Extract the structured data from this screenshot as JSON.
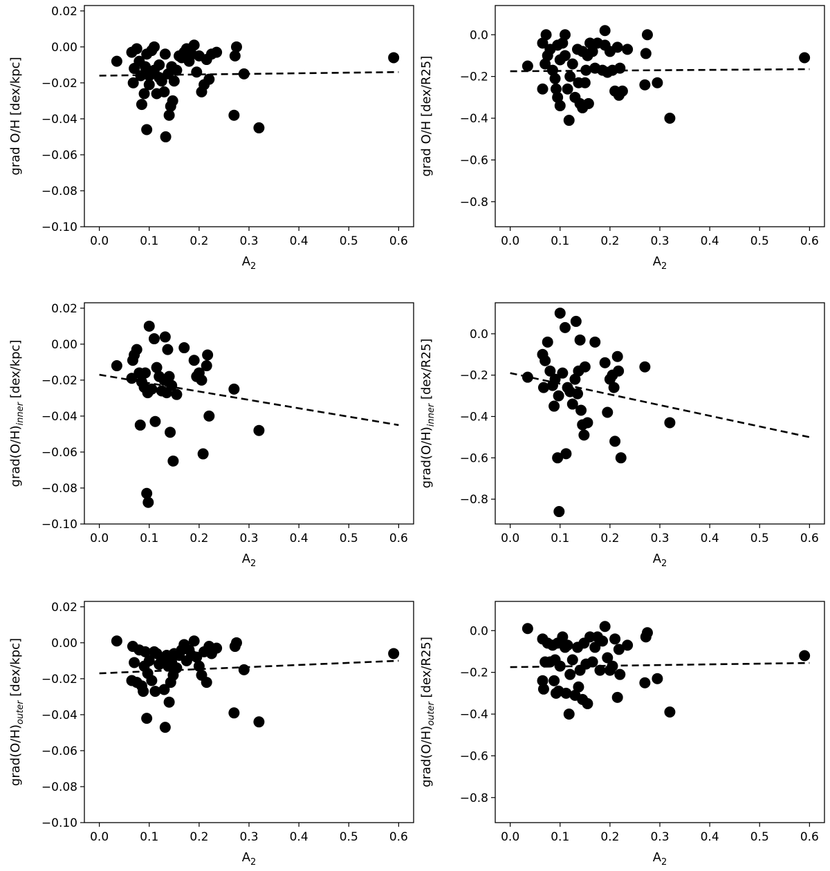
{
  "chart_data": [
    {
      "type": "scatter",
      "xlabel": "A2",
      "ylabel": "grad O/H [dex/kpc]",
      "xlim": [
        -0.03,
        0.63
      ],
      "ylim": [
        -0.1,
        0.023
      ],
      "xticks": [
        "0.0",
        "0.1",
        "0.2",
        "0.3",
        "0.4",
        "0.5",
        "0.6"
      ],
      "yticks": [
        "0.02",
        "0.00",
        "−0.02",
        "−0.04",
        "−0.06",
        "−0.08",
        "−0.10"
      ],
      "grid": false,
      "fit_line": {
        "x": [
          0.0,
          0.6
        ],
        "y": [
          -0.016,
          -0.014
        ],
        "style": "dashed"
      },
      "points": [
        [
          0.035,
          -0.008
        ],
        [
          0.065,
          -0.003
        ],
        [
          0.07,
          -0.012
        ],
        [
          0.068,
          -0.02
        ],
        [
          0.075,
          -0.001
        ],
        [
          0.08,
          -0.008
        ],
        [
          0.083,
          -0.016
        ],
        [
          0.085,
          -0.032
        ],
        [
          0.09,
          -0.026
        ],
        [
          0.092,
          -0.011
        ],
        [
          0.095,
          -0.004
        ],
        [
          0.095,
          -0.046
        ],
        [
          0.1,
          -0.016
        ],
        [
          0.1,
          -0.021
        ],
        [
          0.105,
          -0.002
        ],
        [
          0.11,
          -0.013
        ],
        [
          0.11,
          0.0
        ],
        [
          0.115,
          -0.026
        ],
        [
          0.12,
          -0.01
        ],
        [
          0.12,
          -0.017
        ],
        [
          0.125,
          -0.019
        ],
        [
          0.13,
          -0.025
        ],
        [
          0.132,
          -0.004
        ],
        [
          0.133,
          -0.05
        ],
        [
          0.138,
          -0.015
        ],
        [
          0.14,
          -0.038
        ],
        [
          0.143,
          -0.033
        ],
        [
          0.145,
          -0.011
        ],
        [
          0.147,
          -0.03
        ],
        [
          0.15,
          -0.019
        ],
        [
          0.155,
          -0.013
        ],
        [
          0.16,
          -0.005
        ],
        [
          0.165,
          -0.006
        ],
        [
          0.17,
          -0.003
        ],
        [
          0.175,
          -0.001
        ],
        [
          0.18,
          -0.008
        ],
        [
          0.185,
          -0.004
        ],
        [
          0.19,
          0.001
        ],
        [
          0.195,
          -0.014
        ],
        [
          0.2,
          -0.005
        ],
        [
          0.205,
          -0.025
        ],
        [
          0.21,
          -0.021
        ],
        [
          0.215,
          -0.007
        ],
        [
          0.22,
          -0.018
        ],
        [
          0.225,
          -0.004
        ],
        [
          0.235,
          -0.003
        ],
        [
          0.27,
          -0.038
        ],
        [
          0.272,
          -0.005
        ],
        [
          0.275,
          0.0
        ],
        [
          0.29,
          -0.015
        ],
        [
          0.32,
          -0.045
        ],
        [
          0.59,
          -0.006
        ]
      ]
    },
    {
      "type": "scatter",
      "xlabel": "A2",
      "ylabel": "grad O/H [dex/R25]",
      "xlim": [
        -0.03,
        0.63
      ],
      "ylim": [
        -0.92,
        0.14
      ],
      "xticks": [
        "0.0",
        "0.1",
        "0.2",
        "0.3",
        "0.4",
        "0.5",
        "0.6"
      ],
      "yticks": [
        "0.0",
        "−0.2",
        "−0.4",
        "−0.6",
        "−0.8"
      ],
      "grid": false,
      "fit_line": {
        "x": [
          0.0,
          0.6
        ],
        "y": [
          -0.175,
          -0.165
        ],
        "style": "dashed"
      },
      "points": [
        [
          0.035,
          -0.15
        ],
        [
          0.065,
          -0.04
        ],
        [
          0.065,
          -0.26
        ],
        [
          0.07,
          -0.14
        ],
        [
          0.072,
          0.0
        ],
        [
          0.075,
          -0.1
        ],
        [
          0.08,
          -0.07
        ],
        [
          0.085,
          -0.17
        ],
        [
          0.09,
          -0.21
        ],
        [
          0.092,
          -0.26
        ],
        [
          0.095,
          -0.05
        ],
        [
          0.095,
          -0.3
        ],
        [
          0.1,
          -0.12
        ],
        [
          0.1,
          -0.34
        ],
        [
          0.105,
          -0.04
        ],
        [
          0.11,
          -0.1
        ],
        [
          0.11,
          0.0
        ],
        [
          0.115,
          -0.26
        ],
        [
          0.118,
          -0.41
        ],
        [
          0.12,
          -0.2
        ],
        [
          0.125,
          -0.14
        ],
        [
          0.13,
          -0.3
        ],
        [
          0.135,
          -0.07
        ],
        [
          0.137,
          -0.23
        ],
        [
          0.14,
          -0.33
        ],
        [
          0.145,
          -0.08
        ],
        [
          0.145,
          -0.35
        ],
        [
          0.15,
          -0.23
        ],
        [
          0.152,
          -0.17
        ],
        [
          0.155,
          -0.1
        ],
        [
          0.157,
          -0.33
        ],
        [
          0.16,
          -0.04
        ],
        [
          0.165,
          -0.08
        ],
        [
          0.17,
          -0.16
        ],
        [
          0.175,
          -0.04
        ],
        [
          0.185,
          -0.17
        ],
        [
          0.19,
          -0.05
        ],
        [
          0.19,
          0.02
        ],
        [
          0.195,
          -0.18
        ],
        [
          0.2,
          -0.08
        ],
        [
          0.205,
          -0.17
        ],
        [
          0.21,
          -0.27
        ],
        [
          0.215,
          -0.06
        ],
        [
          0.218,
          -0.29
        ],
        [
          0.22,
          -0.16
        ],
        [
          0.225,
          -0.27
        ],
        [
          0.235,
          -0.07
        ],
        [
          0.27,
          -0.24
        ],
        [
          0.272,
          -0.09
        ],
        [
          0.275,
          0.0
        ],
        [
          0.295,
          -0.23
        ],
        [
          0.32,
          -0.4
        ],
        [
          0.59,
          -0.11
        ]
      ]
    },
    {
      "type": "scatter",
      "xlabel": "A2",
      "ylabel": "grad(O/H)inner [dex/kpc]",
      "xlim": [
        -0.03,
        0.63
      ],
      "ylim": [
        -0.1,
        0.023
      ],
      "xticks": [
        "0.0",
        "0.1",
        "0.2",
        "0.3",
        "0.4",
        "0.5",
        "0.6"
      ],
      "yticks": [
        "0.02",
        "0.00",
        "−0.02",
        "−0.04",
        "−0.06",
        "−0.08",
        "−0.10"
      ],
      "grid": false,
      "fit_line": {
        "x": [
          0.0,
          0.6
        ],
        "y": [
          -0.017,
          -0.045
        ],
        "style": "dashed"
      },
      "points": [
        [
          0.035,
          -0.012
        ],
        [
          0.065,
          -0.019
        ],
        [
          0.067,
          -0.009
        ],
        [
          0.07,
          -0.006
        ],
        [
          0.075,
          -0.003
        ],
        [
          0.08,
          -0.016
        ],
        [
          0.082,
          -0.045
        ],
        [
          0.085,
          -0.021
        ],
        [
          0.09,
          -0.024
        ],
        [
          0.092,
          -0.016
        ],
        [
          0.095,
          -0.083
        ],
        [
          0.097,
          -0.027
        ],
        [
          0.098,
          -0.088
        ],
        [
          0.1,
          0.01
        ],
        [
          0.105,
          -0.025
        ],
        [
          0.11,
          0.003
        ],
        [
          0.112,
          -0.043
        ],
        [
          0.115,
          -0.013
        ],
        [
          0.12,
          -0.018
        ],
        [
          0.125,
          -0.026
        ],
        [
          0.13,
          -0.02
        ],
        [
          0.132,
          0.004
        ],
        [
          0.135,
          -0.027
        ],
        [
          0.137,
          -0.003
        ],
        [
          0.14,
          -0.018
        ],
        [
          0.142,
          -0.049
        ],
        [
          0.145,
          -0.023
        ],
        [
          0.148,
          -0.065
        ],
        [
          0.155,
          -0.028
        ],
        [
          0.17,
          -0.002
        ],
        [
          0.19,
          -0.009
        ],
        [
          0.195,
          -0.018
        ],
        [
          0.2,
          -0.016
        ],
        [
          0.205,
          -0.02
        ],
        [
          0.208,
          -0.061
        ],
        [
          0.215,
          -0.012
        ],
        [
          0.217,
          -0.006
        ],
        [
          0.22,
          -0.04
        ],
        [
          0.27,
          -0.025
        ],
        [
          0.32,
          -0.048
        ]
      ]
    },
    {
      "type": "scatter",
      "xlabel": "A2",
      "ylabel": "grad(O/H)inner [dex/R25]",
      "xlim": [
        -0.03,
        0.63
      ],
      "ylim": [
        -0.92,
        0.15
      ],
      "xticks": [
        "0.0",
        "0.1",
        "0.2",
        "0.3",
        "0.4",
        "0.5",
        "0.6"
      ],
      "yticks": [
        "0.0",
        "−0.2",
        "−0.4",
        "−0.6",
        "−0.8"
      ],
      "grid": false,
      "fit_line": {
        "x": [
          0.0,
          0.6
        ],
        "y": [
          -0.19,
          -0.5
        ],
        "style": "dashed"
      },
      "points": [
        [
          0.035,
          -0.21
        ],
        [
          0.065,
          -0.1
        ],
        [
          0.067,
          -0.26
        ],
        [
          0.07,
          -0.13
        ],
        [
          0.075,
          -0.04
        ],
        [
          0.08,
          -0.18
        ],
        [
          0.085,
          -0.25
        ],
        [
          0.088,
          -0.35
        ],
        [
          0.09,
          -0.22
        ],
        [
          0.095,
          -0.6
        ],
        [
          0.097,
          -0.3
        ],
        [
          0.098,
          -0.86
        ],
        [
          0.1,
          0.1
        ],
        [
          0.105,
          -0.19
        ],
        [
          0.11,
          0.03
        ],
        [
          0.112,
          -0.58
        ],
        [
          0.115,
          -0.26
        ],
        [
          0.12,
          -0.28
        ],
        [
          0.125,
          -0.34
        ],
        [
          0.13,
          -0.22
        ],
        [
          0.132,
          0.06
        ],
        [
          0.135,
          -0.29
        ],
        [
          0.137,
          -0.18
        ],
        [
          0.14,
          -0.03
        ],
        [
          0.142,
          -0.37
        ],
        [
          0.145,
          -0.44
        ],
        [
          0.148,
          -0.49
        ],
        [
          0.15,
          -0.16
        ],
        [
          0.155,
          -0.43
        ],
        [
          0.17,
          -0.04
        ],
        [
          0.19,
          -0.14
        ],
        [
          0.195,
          -0.38
        ],
        [
          0.2,
          -0.22
        ],
        [
          0.205,
          -0.2
        ],
        [
          0.208,
          -0.26
        ],
        [
          0.21,
          -0.52
        ],
        [
          0.215,
          -0.11
        ],
        [
          0.217,
          -0.18
        ],
        [
          0.222,
          -0.6
        ],
        [
          0.27,
          -0.16
        ],
        [
          0.32,
          -0.43
        ]
      ]
    },
    {
      "type": "scatter",
      "xlabel": "A2",
      "ylabel": "grad(O/H)outer [dex/kpc]",
      "xlim": [
        -0.03,
        0.63
      ],
      "ylim": [
        -0.1,
        0.023
      ],
      "xticks": [
        "0.0",
        "0.1",
        "0.2",
        "0.3",
        "0.4",
        "0.5",
        "0.6"
      ],
      "yticks": [
        "0.02",
        "0.00",
        "−0.02",
        "−0.04",
        "−0.06",
        "−0.08",
        "−0.10"
      ],
      "grid": false,
      "fit_line": {
        "x": [
          0.0,
          0.6
        ],
        "y": [
          -0.017,
          -0.01
        ],
        "style": "dashed"
      },
      "points": [
        [
          0.035,
          0.001
        ],
        [
          0.065,
          -0.021
        ],
        [
          0.067,
          -0.002
        ],
        [
          0.07,
          -0.011
        ],
        [
          0.075,
          -0.022
        ],
        [
          0.08,
          -0.004
        ],
        [
          0.085,
          -0.024
        ],
        [
          0.088,
          -0.027
        ],
        [
          0.09,
          -0.013
        ],
        [
          0.092,
          -0.005
        ],
        [
          0.095,
          -0.042
        ],
        [
          0.097,
          -0.017
        ],
        [
          0.1,
          -0.01
        ],
        [
          0.105,
          -0.021
        ],
        [
          0.11,
          -0.005
        ],
        [
          0.112,
          -0.027
        ],
        [
          0.115,
          -0.006
        ],
        [
          0.12,
          -0.012
        ],
        [
          0.125,
          -0.009
        ],
        [
          0.13,
          -0.026
        ],
        [
          0.132,
          -0.047
        ],
        [
          0.135,
          -0.007
        ],
        [
          0.138,
          -0.013
        ],
        [
          0.14,
          -0.033
        ],
        [
          0.143,
          -0.022
        ],
        [
          0.145,
          -0.011
        ],
        [
          0.148,
          -0.018
        ],
        [
          0.15,
          -0.006
        ],
        [
          0.155,
          -0.014
        ],
        [
          0.16,
          -0.007
        ],
        [
          0.165,
          -0.004
        ],
        [
          0.17,
          -0.001
        ],
        [
          0.175,
          -0.01
        ],
        [
          0.18,
          -0.004
        ],
        [
          0.185,
          -0.007
        ],
        [
          0.19,
          0.001
        ],
        [
          0.195,
          -0.008
        ],
        [
          0.2,
          -0.013
        ],
        [
          0.205,
          -0.018
        ],
        [
          0.21,
          -0.005
        ],
        [
          0.215,
          -0.022
        ],
        [
          0.22,
          -0.002
        ],
        [
          0.225,
          -0.006
        ],
        [
          0.235,
          -0.003
        ],
        [
          0.27,
          -0.039
        ],
        [
          0.272,
          -0.002
        ],
        [
          0.275,
          0.0
        ],
        [
          0.29,
          -0.015
        ],
        [
          0.32,
          -0.044
        ],
        [
          0.59,
          -0.006
        ]
      ]
    },
    {
      "type": "scatter",
      "xlabel": "A2",
      "ylabel": "grad(O/H)outer [dex/R25]",
      "xlim": [
        -0.03,
        0.63
      ],
      "ylim": [
        -0.92,
        0.14
      ],
      "xticks": [
        "0.0",
        "0.1",
        "0.2",
        "0.3",
        "0.4",
        "0.5",
        "0.6"
      ],
      "yticks": [
        "0.0",
        "−0.2",
        "−0.4",
        "−0.6",
        "−0.8"
      ],
      "grid": false,
      "fit_line": {
        "x": [
          0.0,
          0.6
        ],
        "y": [
          -0.175,
          -0.155
        ],
        "style": "dashed"
      },
      "points": [
        [
          0.035,
          0.01
        ],
        [
          0.065,
          -0.04
        ],
        [
          0.065,
          -0.24
        ],
        [
          0.067,
          -0.28
        ],
        [
          0.07,
          -0.15
        ],
        [
          0.075,
          -0.06
        ],
        [
          0.08,
          -0.15
        ],
        [
          0.085,
          -0.07
        ],
        [
          0.088,
          -0.24
        ],
        [
          0.09,
          -0.14
        ],
        [
          0.092,
          -0.3
        ],
        [
          0.095,
          -0.06
        ],
        [
          0.097,
          -0.29
        ],
        [
          0.1,
          -0.17
        ],
        [
          0.105,
          -0.03
        ],
        [
          0.11,
          -0.08
        ],
        [
          0.112,
          -0.3
        ],
        [
          0.115,
          -0.07
        ],
        [
          0.118,
          -0.4
        ],
        [
          0.12,
          -0.21
        ],
        [
          0.125,
          -0.14
        ],
        [
          0.13,
          -0.31
        ],
        [
          0.135,
          -0.08
        ],
        [
          0.137,
          -0.27
        ],
        [
          0.14,
          -0.19
        ],
        [
          0.145,
          -0.33
        ],
        [
          0.148,
          -0.06
        ],
        [
          0.152,
          -0.16
        ],
        [
          0.155,
          -0.35
        ],
        [
          0.16,
          -0.03
        ],
        [
          0.165,
          -0.15
        ],
        [
          0.17,
          -0.08
        ],
        [
          0.175,
          -0.03
        ],
        [
          0.18,
          -0.19
        ],
        [
          0.185,
          -0.05
        ],
        [
          0.19,
          0.02
        ],
        [
          0.195,
          -0.13
        ],
        [
          0.2,
          -0.19
        ],
        [
          0.205,
          -0.17
        ],
        [
          0.21,
          -0.04
        ],
        [
          0.215,
          -0.32
        ],
        [
          0.218,
          -0.09
        ],
        [
          0.22,
          -0.21
        ],
        [
          0.235,
          -0.07
        ],
        [
          0.27,
          -0.25
        ],
        [
          0.272,
          -0.03
        ],
        [
          0.275,
          -0.01
        ],
        [
          0.295,
          -0.23
        ],
        [
          0.32,
          -0.39
        ],
        [
          0.59,
          -0.12
        ]
      ]
    }
  ]
}
